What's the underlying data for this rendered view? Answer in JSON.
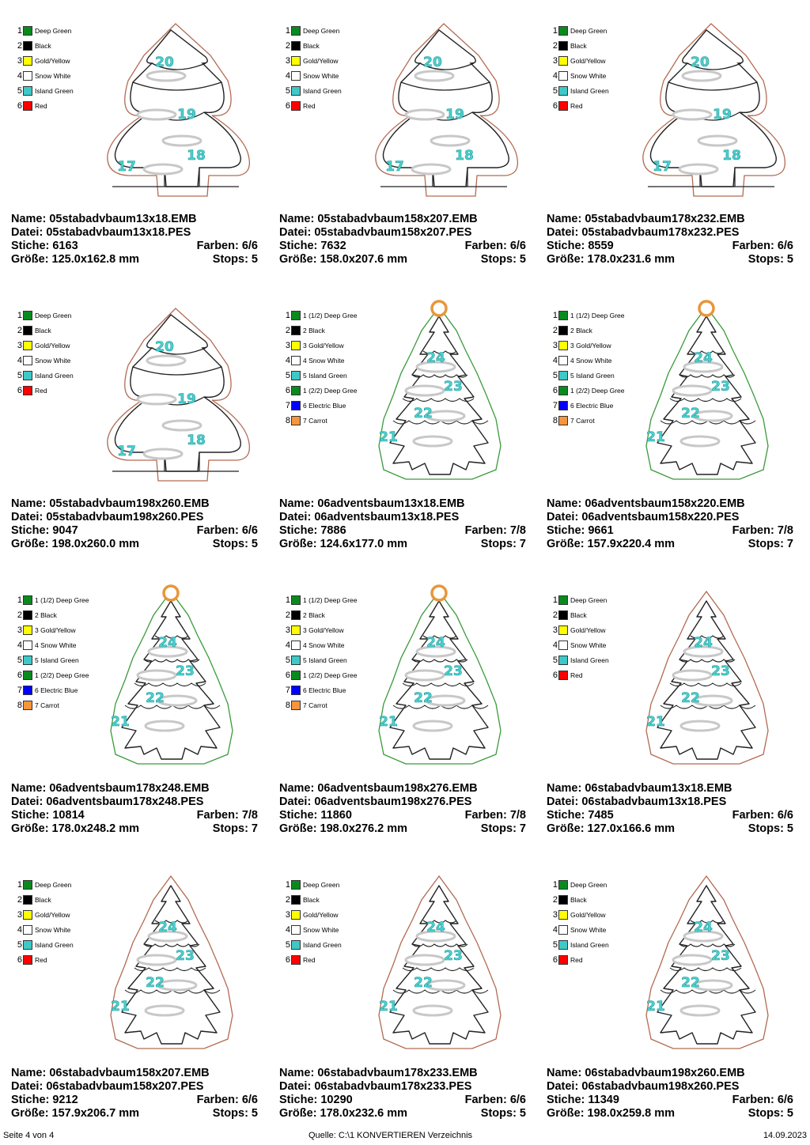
{
  "cards": [
    {
      "style": "stab1",
      "colors": [
        {
          "n": "1",
          "label": "Deep Green",
          "hex": "#0a8a1e"
        },
        {
          "n": "2",
          "label": "Black",
          "hex": "#000000"
        },
        {
          "n": "3",
          "label": "Gold/Yellow",
          "hex": "#ffff00"
        },
        {
          "n": "4",
          "label": "Snow White",
          "hex": "#ffffff"
        },
        {
          "n": "5",
          "label": "Island Green",
          "hex": "#3ec8c8"
        },
        {
          "n": "6",
          "label": "Red",
          "hex": "#ff0000"
        }
      ],
      "numbers": [
        "20",
        "19",
        "18",
        "17"
      ],
      "name": "Name: 05stabadvbaum13x18.EMB",
      "file": "Datei: 05stabadvbaum13x18.PES",
      "stitches": "Stiche: 6163",
      "colors_count": "Farben: 6/6",
      "size": "Größe: 125.0x162.8 mm",
      "stops": "Stops: 5"
    },
    {
      "style": "stab1",
      "colors": [
        {
          "n": "1",
          "label": "Deep Green",
          "hex": "#0a8a1e"
        },
        {
          "n": "2",
          "label": "Black",
          "hex": "#000000"
        },
        {
          "n": "3",
          "label": "Gold/Yellow",
          "hex": "#ffff00"
        },
        {
          "n": "4",
          "label": "Snow White",
          "hex": "#ffffff"
        },
        {
          "n": "5",
          "label": "Island Green",
          "hex": "#3ec8c8"
        },
        {
          "n": "6",
          "label": "Red",
          "hex": "#ff0000"
        }
      ],
      "numbers": [
        "20",
        "19",
        "18",
        "17"
      ],
      "name": "Name: 05stabadvbaum158x207.EMB",
      "file": "Datei: 05stabadvbaum158x207.PES",
      "stitches": "Stiche: 7632",
      "colors_count": "Farben: 6/6",
      "size": "Größe: 158.0x207.6 mm",
      "stops": "Stops: 5"
    },
    {
      "style": "stab1",
      "colors": [
        {
          "n": "1",
          "label": "Deep Green",
          "hex": "#0a8a1e"
        },
        {
          "n": "2",
          "label": "Black",
          "hex": "#000000"
        },
        {
          "n": "3",
          "label": "Gold/Yellow",
          "hex": "#ffff00"
        },
        {
          "n": "4",
          "label": "Snow White",
          "hex": "#ffffff"
        },
        {
          "n": "5",
          "label": "Island Green",
          "hex": "#3ec8c8"
        },
        {
          "n": "6",
          "label": "Red",
          "hex": "#ff0000"
        }
      ],
      "numbers": [
        "20",
        "19",
        "18",
        "17"
      ],
      "name": "Name: 05stabadvbaum178x232.EMB",
      "file": "Datei: 05stabadvbaum178x232.PES",
      "stitches": "Stiche: 8559",
      "colors_count": "Farben: 6/6",
      "size": "Größe: 178.0x231.6 mm",
      "stops": "Stops: 5"
    },
    {
      "style": "stab1",
      "colors": [
        {
          "n": "1",
          "label": "Deep Green",
          "hex": "#0a8a1e"
        },
        {
          "n": "2",
          "label": "Black",
          "hex": "#000000"
        },
        {
          "n": "3",
          "label": "Gold/Yellow",
          "hex": "#ffff00"
        },
        {
          "n": "4",
          "label": "Snow White",
          "hex": "#ffffff"
        },
        {
          "n": "5",
          "label": "Island Green",
          "hex": "#3ec8c8"
        },
        {
          "n": "6",
          "label": "Red",
          "hex": "#ff0000"
        }
      ],
      "numbers": [
        "20",
        "19",
        "18",
        "17"
      ],
      "name": "Name: 05stabadvbaum198x260.EMB",
      "file": "Datei: 05stabadvbaum198x260.PES",
      "stitches": "Stiche: 9047",
      "colors_count": "Farben: 6/6",
      "size": "Größe: 198.0x260.0 mm",
      "stops": "Stops: 5"
    },
    {
      "style": "advent",
      "colors": [
        {
          "n": "1",
          "label": "1 (1/2) Deep Gree",
          "hex": "#0a8a1e"
        },
        {
          "n": "2",
          "label": "2 Black",
          "hex": "#000000"
        },
        {
          "n": "3",
          "label": "3 Gold/Yellow",
          "hex": "#ffff00"
        },
        {
          "n": "4",
          "label": "4 Snow White",
          "hex": "#ffffff"
        },
        {
          "n": "5",
          "label": "5 Island Green",
          "hex": "#3ec8c8"
        },
        {
          "n": "6",
          "label": "1 (2/2) Deep Gree",
          "hex": "#0a8a1e"
        },
        {
          "n": "7",
          "label": "6 Electric Blue",
          "hex": "#0000ff"
        },
        {
          "n": "8",
          "label": "7 Carrot",
          "hex": "#f6953c"
        }
      ],
      "numbers": [
        "24",
        "23",
        "22",
        "21"
      ],
      "name": "Name: 06adventsbaum13x18.EMB",
      "file": "Datei: 06adventsbaum13x18.PES",
      "stitches": "Stiche: 7886",
      "colors_count": "Farben: 7/8",
      "size": "Größe: 124.6x177.0 mm",
      "stops": "Stops: 7"
    },
    {
      "style": "advent",
      "colors": [
        {
          "n": "1",
          "label": "1 (1/2) Deep Gree",
          "hex": "#0a8a1e"
        },
        {
          "n": "2",
          "label": "2 Black",
          "hex": "#000000"
        },
        {
          "n": "3",
          "label": "3 Gold/Yellow",
          "hex": "#ffff00"
        },
        {
          "n": "4",
          "label": "4 Snow White",
          "hex": "#ffffff"
        },
        {
          "n": "5",
          "label": "5 Island Green",
          "hex": "#3ec8c8"
        },
        {
          "n": "6",
          "label": "1 (2/2) Deep Gree",
          "hex": "#0a8a1e"
        },
        {
          "n": "7",
          "label": "6 Electric Blue",
          "hex": "#0000ff"
        },
        {
          "n": "8",
          "label": "7 Carrot",
          "hex": "#f6953c"
        }
      ],
      "numbers": [
        "24",
        "23",
        "22",
        "21"
      ],
      "name": "Name: 06adventsbaum158x220.EMB",
      "file": "Datei: 06adventsbaum158x220.PES",
      "stitches": "Stiche: 9661",
      "colors_count": "Farben: 7/8",
      "size": "Größe: 157.9x220.4 mm",
      "stops": "Stops: 7"
    },
    {
      "style": "advent",
      "colors": [
        {
          "n": "1",
          "label": "1 (1/2) Deep Gree",
          "hex": "#0a8a1e"
        },
        {
          "n": "2",
          "label": "2 Black",
          "hex": "#000000"
        },
        {
          "n": "3",
          "label": "3 Gold/Yellow",
          "hex": "#ffff00"
        },
        {
          "n": "4",
          "label": "4 Snow White",
          "hex": "#ffffff"
        },
        {
          "n": "5",
          "label": "5 Island Green",
          "hex": "#3ec8c8"
        },
        {
          "n": "6",
          "label": "1 (2/2) Deep Gree",
          "hex": "#0a8a1e"
        },
        {
          "n": "7",
          "label": "6 Electric Blue",
          "hex": "#0000ff"
        },
        {
          "n": "8",
          "label": "7 Carrot",
          "hex": "#f6953c"
        }
      ],
      "numbers": [
        "24",
        "23",
        "22",
        "21"
      ],
      "name": "Name: 06adventsbaum178x248.EMB",
      "file": "Datei: 06adventsbaum178x248.PES",
      "stitches": "Stiche: 10814",
      "colors_count": "Farben: 7/8",
      "size": "Größe: 178.0x248.2 mm",
      "stops": "Stops: 7"
    },
    {
      "style": "advent",
      "colors": [
        {
          "n": "1",
          "label": "1 (1/2) Deep Gree",
          "hex": "#0a8a1e"
        },
        {
          "n": "2",
          "label": "2 Black",
          "hex": "#000000"
        },
        {
          "n": "3",
          "label": "3 Gold/Yellow",
          "hex": "#ffff00"
        },
        {
          "n": "4",
          "label": "4 Snow White",
          "hex": "#ffffff"
        },
        {
          "n": "5",
          "label": "5 Island Green",
          "hex": "#3ec8c8"
        },
        {
          "n": "6",
          "label": "1 (2/2) Deep Gree",
          "hex": "#0a8a1e"
        },
        {
          "n": "7",
          "label": "6 Electric Blue",
          "hex": "#0000ff"
        },
        {
          "n": "8",
          "label": "7 Carrot",
          "hex": "#f6953c"
        }
      ],
      "numbers": [
        "24",
        "23",
        "22",
        "21"
      ],
      "name": "Name: 06adventsbaum198x276.EMB",
      "file": "Datei: 06adventsbaum198x276.PES",
      "stitches": "Stiche: 11860",
      "colors_count": "Farben: 7/8",
      "size": "Größe: 198.0x276.2 mm",
      "stops": "Stops: 7"
    },
    {
      "style": "stab2",
      "colors": [
        {
          "n": "1",
          "label": "Deep Green",
          "hex": "#0a8a1e"
        },
        {
          "n": "2",
          "label": "Black",
          "hex": "#000000"
        },
        {
          "n": "3",
          "label": "Gold/Yellow",
          "hex": "#ffff00"
        },
        {
          "n": "4",
          "label": "Snow White",
          "hex": "#ffffff"
        },
        {
          "n": "5",
          "label": "Island Green",
          "hex": "#3ec8c8"
        },
        {
          "n": "6",
          "label": "Red",
          "hex": "#ff0000"
        }
      ],
      "numbers": [
        "24",
        "23",
        "22",
        "21"
      ],
      "name": "Name: 06stabadvbaum13x18.EMB",
      "file": "Datei: 06stabadvbaum13x18.PES",
      "stitches": "Stiche: 7485",
      "colors_count": "Farben: 6/6",
      "size": "Größe: 127.0x166.6 mm",
      "stops": "Stops: 5"
    },
    {
      "style": "stab2",
      "colors": [
        {
          "n": "1",
          "label": "Deep Green",
          "hex": "#0a8a1e"
        },
        {
          "n": "2",
          "label": "Black",
          "hex": "#000000"
        },
        {
          "n": "3",
          "label": "Gold/Yellow",
          "hex": "#ffff00"
        },
        {
          "n": "4",
          "label": "Snow White",
          "hex": "#ffffff"
        },
        {
          "n": "5",
          "label": "Island Green",
          "hex": "#3ec8c8"
        },
        {
          "n": "6",
          "label": "Red",
          "hex": "#ff0000"
        }
      ],
      "numbers": [
        "24",
        "23",
        "22",
        "21"
      ],
      "name": "Name: 06stabadvbaum158x207.EMB",
      "file": "Datei: 06stabadvbaum158x207.PES",
      "stitches": "Stiche: 9212",
      "colors_count": "Farben: 6/6",
      "size": "Größe: 157.9x206.7 mm",
      "stops": "Stops: 5"
    },
    {
      "style": "stab2",
      "colors": [
        {
          "n": "1",
          "label": "Deep Green",
          "hex": "#0a8a1e"
        },
        {
          "n": "2",
          "label": "Black",
          "hex": "#000000"
        },
        {
          "n": "3",
          "label": "Gold/Yellow",
          "hex": "#ffff00"
        },
        {
          "n": "4",
          "label": "Snow White",
          "hex": "#ffffff"
        },
        {
          "n": "5",
          "label": "Island Green",
          "hex": "#3ec8c8"
        },
        {
          "n": "6",
          "label": "Red",
          "hex": "#ff0000"
        }
      ],
      "numbers": [
        "24",
        "23",
        "22",
        "21"
      ],
      "name": "Name: 06stabadvbaum178x233.EMB",
      "file": "Datei: 06stabadvbaum178x233.PES",
      "stitches": "Stiche: 10290",
      "colors_count": "Farben: 6/6",
      "size": "Größe: 178.0x232.6 mm",
      "stops": "Stops: 5"
    },
    {
      "style": "stab2",
      "colors": [
        {
          "n": "1",
          "label": "Deep Green",
          "hex": "#0a8a1e"
        },
        {
          "n": "2",
          "label": "Black",
          "hex": "#000000"
        },
        {
          "n": "3",
          "label": "Gold/Yellow",
          "hex": "#ffff00"
        },
        {
          "n": "4",
          "label": "Snow White",
          "hex": "#ffffff"
        },
        {
          "n": "5",
          "label": "Island Green",
          "hex": "#3ec8c8"
        },
        {
          "n": "6",
          "label": "Red",
          "hex": "#ff0000"
        }
      ],
      "numbers": [
        "24",
        "23",
        "22",
        "21"
      ],
      "name": "Name: 06stabadvbaum198x260.EMB",
      "file": "Datei: 06stabadvbaum198x260.PES",
      "stitches": "Stiche: 11349",
      "colors_count": "Farben: 6/6",
      "size": "Größe: 198.0x259.8 mm",
      "stops": "Stops: 5"
    }
  ],
  "footer": {
    "page": "Seite 4 von 4",
    "source": "Quelle: C:\\1 KONVERTIEREN Verzeichnis",
    "date": "14.09.2023"
  }
}
